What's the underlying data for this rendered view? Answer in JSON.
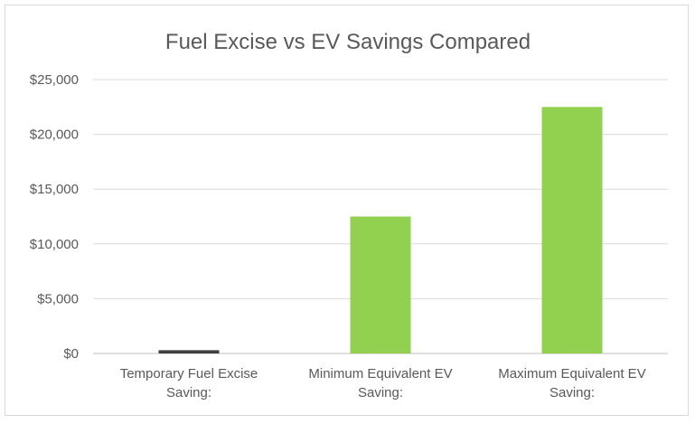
{
  "chart_data": {
    "type": "bar",
    "title": "Fuel Excise vs EV Savings Compared",
    "xlabel": "",
    "ylabel": "",
    "categories": [
      [
        "Temporary Fuel Excise",
        "Saving:"
      ],
      [
        "Minimum Equivalent EV",
        "Saving:"
      ],
      [
        "Maximum Equivalent EV",
        "Saving:"
      ]
    ],
    "values": [
      300,
      12500,
      22500
    ],
    "bar_colors": [
      "#404040",
      "#92d050",
      "#92d050"
    ],
    "ylim": [
      0,
      25000
    ],
    "yticks": [
      0,
      5000,
      10000,
      15000,
      20000,
      25000
    ],
    "ytick_labels": [
      "$0",
      "$5,000",
      "$10,000",
      "$15,000",
      "$20,000",
      "$25,000"
    ],
    "grid": true,
    "legend": "none"
  }
}
